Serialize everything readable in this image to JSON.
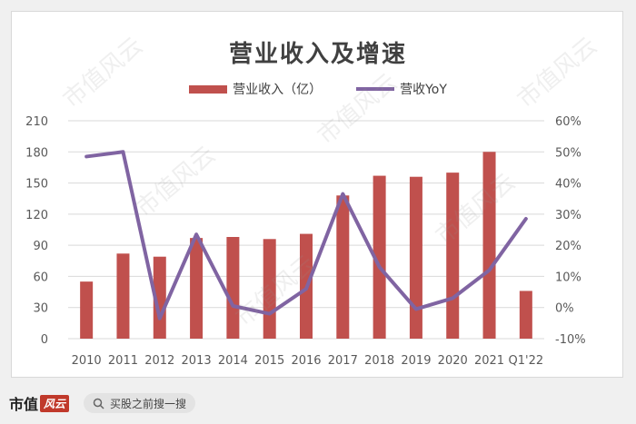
{
  "chart_data": {
    "type": "bar",
    "title": "营业收入及增速",
    "categories": [
      "2010",
      "2011",
      "2012",
      "2013",
      "2014",
      "2015",
      "2016",
      "2017",
      "2018",
      "2019",
      "2020",
      "2021",
      "Q1'22"
    ],
    "series": [
      {
        "name": "营业收入（亿）",
        "type": "bar",
        "axis": "left",
        "color": "#c0504d",
        "values": [
          55,
          82,
          79,
          97,
          98,
          96,
          101,
          138,
          157,
          156,
          160,
          180,
          46
        ]
      },
      {
        "name": "营收YoY",
        "type": "line",
        "axis": "right",
        "color": "#8064a2",
        "values": [
          48.5,
          50,
          -3.5,
          23.5,
          0.5,
          -2,
          6,
          36.5,
          13,
          -0.5,
          3,
          12,
          28.5
        ]
      }
    ],
    "y_left": {
      "ticks": [
        "0",
        "30",
        "60",
        "90",
        "120",
        "150",
        "180",
        "210"
      ],
      "ylim": [
        0,
        210
      ]
    },
    "y_right": {
      "ticks": [
        "-10%",
        "0%",
        "10%",
        "20%",
        "30%",
        "40%",
        "50%",
        "60%"
      ],
      "ylim": [
        -10,
        60
      ]
    },
    "grid": true,
    "legend_position": "top-center"
  },
  "watermark_text": "市值风云",
  "footer": {
    "logo_text": "市值",
    "logo_mark": "风云",
    "search_icon": "search-icon",
    "search_text": "买股之前搜一搜"
  }
}
